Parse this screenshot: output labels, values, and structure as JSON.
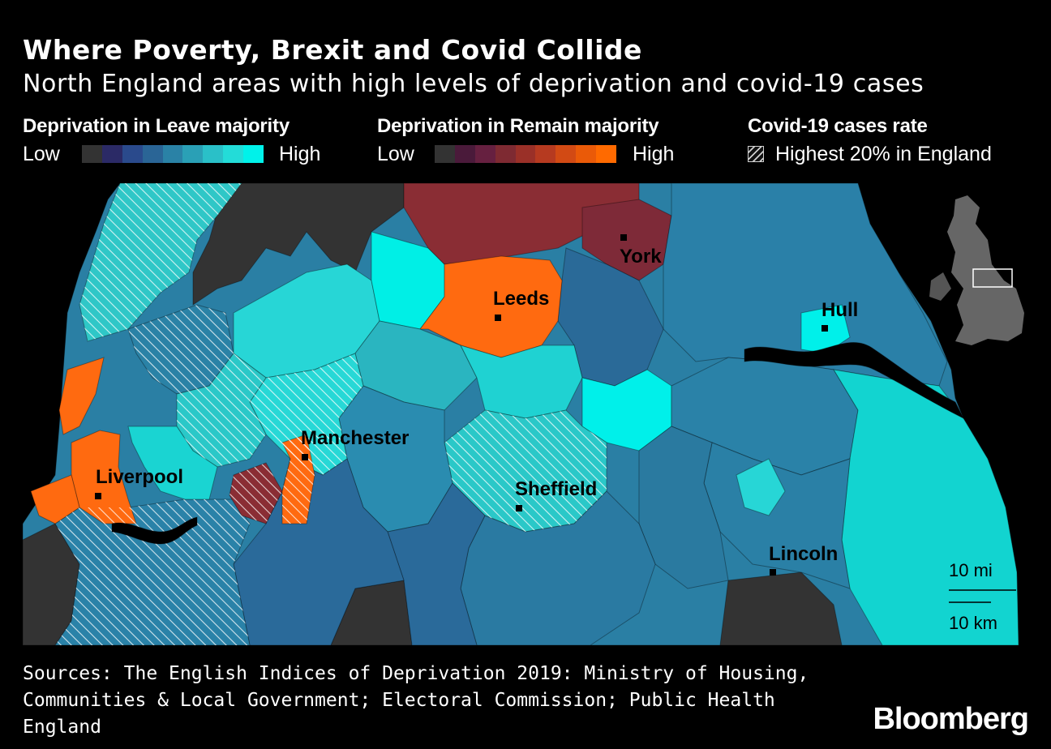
{
  "header": {
    "title": "Where Poverty, Brexit and Covid Collide",
    "subtitle": "North England areas with high levels of deprivation and covid-19 cases"
  },
  "legend": {
    "leave": {
      "title": "Deprivation in Leave majority",
      "low_label": "Low",
      "high_label": "High",
      "colors": [
        "#333333",
        "#2b2a66",
        "#2a4a8c",
        "#2a6596",
        "#2a82a6",
        "#2aa0b6",
        "#2ac0c8",
        "#23dcd8",
        "#00f2ea"
      ]
    },
    "remain": {
      "title": "Deprivation in Remain majority",
      "low_label": "Low",
      "high_label": "High",
      "colors": [
        "#333333",
        "#4a1a3a",
        "#662040",
        "#7e2a32",
        "#9a3028",
        "#b63a20",
        "#d24a14",
        "#ea5a08",
        "#ff6a00"
      ]
    },
    "covid": {
      "title": "Covid-19 cases rate",
      "hatch_label": "Highest 20% in England"
    }
  },
  "map": {
    "cities": [
      {
        "name": "York"
      },
      {
        "name": "Leeds"
      },
      {
        "name": "Hull"
      },
      {
        "name": "Manchester"
      },
      {
        "name": "Liverpool"
      },
      {
        "name": "Sheffield"
      },
      {
        "name": "Lincoln"
      }
    ],
    "scale": {
      "mi_label": "10 mi",
      "km_label": "10 km"
    }
  },
  "footer": {
    "source": "Sources: The English Indices of Deprivation 2019: Ministry of Housing, Communities & Local Government; Electoral Commission; Public Health England",
    "brand": "Bloomberg"
  }
}
